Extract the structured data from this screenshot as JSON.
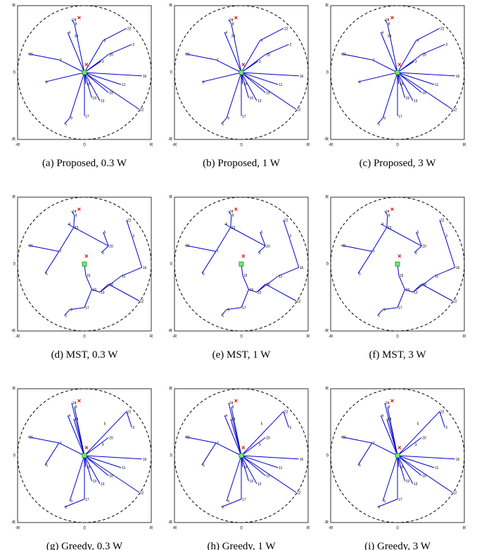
{
  "panels": [
    {
      "caption": "(a) Proposed, 0.3 W"
    },
    {
      "caption": "(b) Proposed, 1 W"
    },
    {
      "caption": "(c) Proposed, 3 W"
    },
    {
      "caption": "(d) MST, 0.3 W"
    },
    {
      "caption": "(e) MST, 1 W"
    },
    {
      "caption": "(f) MST, 3 W"
    },
    {
      "caption": "(g) Greedy, 0.3 W"
    },
    {
      "caption": "(h) Greedy, 1 W"
    },
    {
      "caption": "(i) Greedy, 3 W"
    }
  ],
  "axis_labels": {
    "neg": "-R",
    "zero": "0",
    "pos": "R"
  },
  "nodes": [
    {
      "label": "24"
    },
    {
      "label": "8"
    },
    {
      "label": "4"
    },
    {
      "label": "23"
    },
    {
      "label": "5"
    },
    {
      "label": "22"
    },
    {
      "label": "2"
    },
    {
      "label": "21"
    },
    {
      "label": "7"
    },
    {
      "label": "20"
    },
    {
      "label": "3"
    },
    {
      "label": "6"
    },
    {
      "label": "15"
    },
    {
      "label": "16"
    },
    {
      "label": "11"
    },
    {
      "label": "18"
    },
    {
      "label": "19"
    },
    {
      "label": "13"
    },
    {
      "label": "12"
    },
    {
      "label": "9"
    },
    {
      "label": "17"
    },
    {
      "label": "1"
    }
  ]
}
